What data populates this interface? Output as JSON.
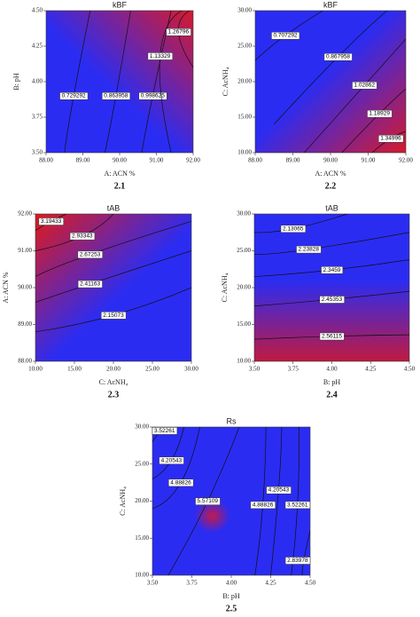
{
  "chart_data": [
    {
      "type": "contour",
      "title": "kBF",
      "xlabel": "A: ACN %",
      "ylabel": "B: pH",
      "caption": "2.1",
      "colors": [
        "#2b2cf2",
        "#d51a2e"
      ],
      "hot_corner": "top-right",
      "xlim": [
        88,
        92
      ],
      "ylim": [
        3.5,
        4.5
      ],
      "xticks": [
        {
          "value": 88,
          "label": "88.00"
        },
        {
          "value": 89,
          "label": "89.00"
        },
        {
          "value": 90,
          "label": "90.00"
        },
        {
          "value": 91,
          "label": "91.00"
        },
        {
          "value": 92,
          "label": "92.00"
        }
      ],
      "yticks": [
        {
          "value": 3.5,
          "label": "3.50"
        },
        {
          "value": 3.75,
          "label": "3.75"
        },
        {
          "value": 4,
          "label": "4.00"
        },
        {
          "value": 4.25,
          "label": "4.25"
        },
        {
          "value": 4.5,
          "label": "4.50"
        }
      ],
      "contours": [
        {
          "level": 0.729292,
          "x": [
            89.2,
            88.75,
            88.5
          ],
          "y": [
            4.5,
            3.9,
            3.5
          ]
        },
        {
          "level": 0.863958,
          "x": [
            90.3,
            89.9,
            89.6
          ],
          "y": [
            4.5,
            3.9,
            3.5
          ]
        },
        {
          "level": 0.998625,
          "x": [
            91.4,
            90.9,
            90.6
          ],
          "y": [
            4.5,
            3.9,
            3.5
          ]
        },
        {
          "level": 1.13329,
          "x": [
            91.7,
            91.1,
            91.4
          ],
          "y": [
            4.5,
            4.18,
            3.5
          ]
        },
        {
          "level": 1.26796,
          "x": [
            91.9,
            91.6,
            92
          ],
          "y": [
            4.5,
            4.35,
            4.1
          ]
        }
      ]
    },
    {
      "type": "contour",
      "title": "kBF",
      "xlabel": "A: ACN %",
      "ylabel": "C: AcNH₄",
      "caption": "2.2",
      "colors": [
        "#2b2cf2",
        "#d51a2e"
      ],
      "hot_corner": "bottom-right",
      "xlim": [
        88,
        92
      ],
      "ylim": [
        10,
        30
      ],
      "xticks": [
        {
          "value": 88,
          "label": "88.00"
        },
        {
          "value": 89,
          "label": "89.00"
        },
        {
          "value": 90,
          "label": "90.00"
        },
        {
          "value": 91,
          "label": "91.00"
        },
        {
          "value": 92,
          "label": "92.00"
        }
      ],
      "yticks": [
        {
          "value": 10,
          "label": "10.00"
        },
        {
          "value": 15,
          "label": "15.00"
        },
        {
          "value": 20,
          "label": "20.00"
        },
        {
          "value": 25,
          "label": "25.00"
        },
        {
          "value": 30,
          "label": "30.00"
        }
      ],
      "contours": [
        {
          "level": 0.707292,
          "x": [
            88,
            88.8,
            89.8
          ],
          "y": [
            23,
            26.5,
            30
          ]
        },
        {
          "level": 0.867958,
          "x": [
            88.5,
            90.2,
            91.5
          ],
          "y": [
            14,
            23.5,
            30
          ]
        },
        {
          "level": 1.02862,
          "x": [
            89.3,
            90.9,
            92
          ],
          "y": [
            10,
            19.5,
            26
          ]
        },
        {
          "level": 1.18929,
          "x": [
            90.3,
            91.3,
            92
          ],
          "y": [
            10,
            15.5,
            19
          ]
        },
        {
          "level": 1.34996,
          "x": [
            91.1,
            91.6,
            92
          ],
          "y": [
            10,
            12,
            13
          ]
        }
      ]
    },
    {
      "type": "contour",
      "title": "tAB",
      "xlabel": "C: AcNH₄",
      "ylabel": "A: ACN %",
      "caption": "2.3",
      "colors": [
        "#2b2cf2",
        "#e01a1a"
      ],
      "hot_corner": "top-left",
      "xlim": [
        10,
        30
      ],
      "ylim": [
        88,
        92
      ],
      "xticks": [
        {
          "value": 10,
          "label": "10.00"
        },
        {
          "value": 15,
          "label": "15.00"
        },
        {
          "value": 20,
          "label": "20.00"
        },
        {
          "value": 25,
          "label": "25.00"
        },
        {
          "value": 30,
          "label": "30.00"
        }
      ],
      "yticks": [
        {
          "value": 88,
          "label": "88.00"
        },
        {
          "value": 89,
          "label": "89.00"
        },
        {
          "value": 90,
          "label": "90.00"
        },
        {
          "value": 91,
          "label": "91.00"
        },
        {
          "value": 92,
          "label": "92.00"
        }
      ],
      "contours": [
        {
          "level": 3.19433,
          "x": [
            10,
            12,
            14
          ],
          "y": [
            91.55,
            91.8,
            92
          ]
        },
        {
          "level": 2.93343,
          "x": [
            10,
            16,
            20
          ],
          "y": [
            91,
            91.4,
            92
          ]
        },
        {
          "level": 2.67253,
          "x": [
            10,
            17,
            30
          ],
          "y": [
            90.3,
            90.9,
            91.8
          ]
        },
        {
          "level": 2.41163,
          "x": [
            10,
            17,
            30
          ],
          "y": [
            89.6,
            90.1,
            91
          ]
        },
        {
          "level": 2.15073,
          "x": [
            10,
            20,
            30
          ],
          "y": [
            88.8,
            89.25,
            90
          ]
        }
      ]
    },
    {
      "type": "contour",
      "title": "tAB",
      "xlabel": "B: pH",
      "ylabel": "C: AcNH₄",
      "caption": "2.4",
      "colors": [
        "#2b2cf2",
        "#c01a40"
      ],
      "hot_corner": "bottom",
      "xlim": [
        3.5,
        4.5
      ],
      "ylim": [
        10,
        30
      ],
      "xticks": [
        {
          "value": 3.5,
          "label": "3.50"
        },
        {
          "value": 3.75,
          "label": "3.75"
        },
        {
          "value": 4,
          "label": "4.00"
        },
        {
          "value": 4.25,
          "label": "4.25"
        },
        {
          "value": 4.5,
          "label": "4.50"
        }
      ],
      "yticks": [
        {
          "value": 10,
          "label": "10.00"
        },
        {
          "value": 15,
          "label": "15.00"
        },
        {
          "value": 20,
          "label": "20.00"
        },
        {
          "value": 25,
          "label": "25.00"
        },
        {
          "value": 30,
          "label": "30.00"
        }
      ],
      "contours": [
        {
          "level": 2.13065,
          "x": [
            3.5,
            3.75,
            4.1
          ],
          "y": [
            27.5,
            28,
            30
          ]
        },
        {
          "level": 2.23828,
          "x": [
            3.5,
            3.85,
            4.5
          ],
          "y": [
            24.5,
            25.2,
            27.5
          ]
        },
        {
          "level": 2.3459,
          "x": [
            3.5,
            4,
            4.5
          ],
          "y": [
            21.5,
            22.4,
            23.8
          ]
        },
        {
          "level": 2.45353,
          "x": [
            3.5,
            4,
            4.5
          ],
          "y": [
            17.5,
            18.4,
            19.5
          ]
        },
        {
          "level": 2.56115,
          "x": [
            3.5,
            4,
            4.5
          ],
          "y": [
            13,
            13.4,
            13.6
          ]
        }
      ]
    },
    {
      "type": "contour",
      "title": "Rs",
      "xlabel": "B: pH",
      "ylabel": "C: AcNH₄",
      "caption": "2.5",
      "colors": [
        "#2b2cf2",
        "#c41a4a"
      ],
      "hot_corner": "center",
      "xlim": [
        3.5,
        4.5
      ],
      "ylim": [
        10,
        30
      ],
      "xticks": [
        {
          "value": 3.5,
          "label": "3.50"
        },
        {
          "value": 3.75,
          "label": "3.75"
        },
        {
          "value": 4,
          "label": "4.00"
        },
        {
          "value": 4.25,
          "label": "4.25"
        },
        {
          "value": 4.5,
          "label": "4.50"
        }
      ],
      "yticks": [
        {
          "value": 10,
          "label": "10.00"
        },
        {
          "value": 15,
          "label": "15.00"
        },
        {
          "value": 20,
          "label": "20.00"
        },
        {
          "value": 25,
          "label": "25.00"
        },
        {
          "value": 30,
          "label": "30.00"
        }
      ],
      "contours": [
        {
          "level": 3.52261,
          "x": [
            3.5,
            3.55,
            3.58
          ],
          "y": [
            28,
            29.5,
            30
          ]
        },
        {
          "level": 4.20543,
          "x": [
            3.5,
            3.62,
            3.7
          ],
          "y": [
            23,
            25.5,
            30
          ]
        },
        {
          "level": 4.88826,
          "x": [
            3.5,
            3.68,
            3.8
          ],
          "y": [
            19,
            22.5,
            30
          ]
        },
        {
          "level": 5.57109,
          "x": [
            3.6,
            3.85,
            4.05
          ],
          "y": [
            10,
            20,
            30
          ]
        },
        {
          "level": 4.88826,
          "x": [
            4.15,
            4.2,
            4.22
          ],
          "y": [
            10,
            19.5,
            30
          ]
        },
        {
          "level": 4.20543,
          "x": [
            4.25,
            4.3,
            4.32
          ],
          "y": [
            10,
            21.5,
            30
          ]
        },
        {
          "level": 3.52261,
          "x": [
            4.38,
            4.42,
            4.43
          ],
          "y": [
            10,
            19.5,
            30
          ]
        },
        {
          "level": 2.83978,
          "x": [
            4.45,
            4.46,
            4.5
          ],
          "y": [
            10,
            12,
            16
          ]
        }
      ]
    }
  ]
}
